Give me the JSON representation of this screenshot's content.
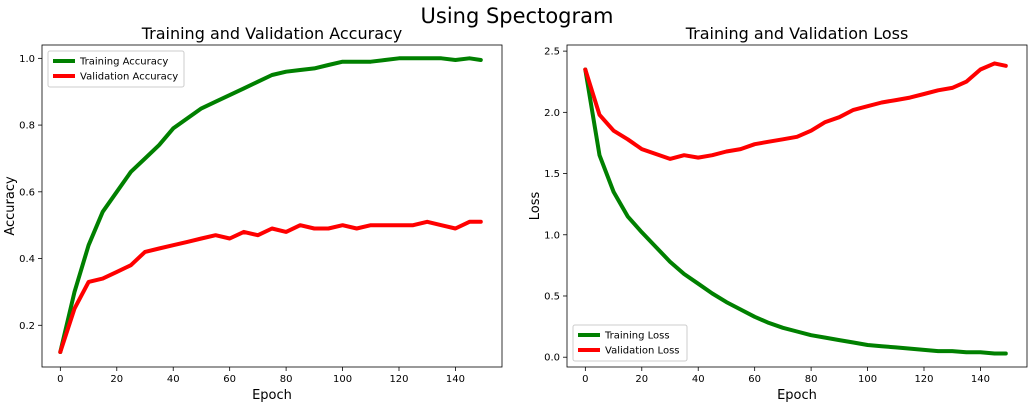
{
  "suptitle": "Using Spectogram",
  "chart_data": [
    {
      "type": "line",
      "title": "Training and Validation Accuracy",
      "xlabel": "Epoch",
      "ylabel": "Accuracy",
      "xlim": [
        -6.5,
        156.5
      ],
      "ylim": [
        0.075,
        1.04
      ],
      "xticks": [
        0,
        20,
        40,
        60,
        80,
        100,
        120,
        140
      ],
      "yticks": [
        0.2,
        0.4,
        0.6,
        0.8,
        1.0
      ],
      "ytick_labels": [
        "0.2",
        "0.4",
        "0.6",
        "0.8",
        "1.0"
      ],
      "grid": false,
      "legend": "top-left",
      "x": [
        0,
        5,
        10,
        15,
        20,
        25,
        30,
        35,
        40,
        45,
        50,
        55,
        60,
        65,
        70,
        75,
        80,
        85,
        90,
        95,
        100,
        105,
        110,
        115,
        120,
        125,
        130,
        135,
        140,
        145,
        149
      ],
      "series": [
        {
          "name": "Training Accuracy",
          "color": "#008000",
          "values": [
            0.12,
            0.3,
            0.44,
            0.54,
            0.6,
            0.66,
            0.7,
            0.74,
            0.79,
            0.82,
            0.85,
            0.87,
            0.89,
            0.91,
            0.93,
            0.95,
            0.96,
            0.965,
            0.97,
            0.98,
            0.99,
            0.99,
            0.99,
            0.995,
            1.0,
            1.0,
            1.0,
            1.0,
            0.995,
            1.0,
            0.995
          ]
        },
        {
          "name": "Validation Accuracy",
          "color": "#ff0000",
          "values": [
            0.12,
            0.25,
            0.33,
            0.34,
            0.36,
            0.38,
            0.42,
            0.43,
            0.44,
            0.45,
            0.46,
            0.47,
            0.46,
            0.48,
            0.47,
            0.49,
            0.48,
            0.5,
            0.49,
            0.49,
            0.5,
            0.49,
            0.5,
            0.5,
            0.5,
            0.5,
            0.51,
            0.5,
            0.49,
            0.51,
            0.51
          ]
        }
      ]
    },
    {
      "type": "line",
      "title": "Training and Validation Loss",
      "xlabel": "Epoch",
      "ylabel": "Loss",
      "xlim": [
        -6.5,
        156.5
      ],
      "ylim": [
        -0.08,
        2.55
      ],
      "xticks": [
        0,
        20,
        40,
        60,
        80,
        100,
        120,
        140
      ],
      "yticks": [
        0.0,
        0.5,
        1.0,
        1.5,
        2.0,
        2.5
      ],
      "ytick_labels": [
        "0.0",
        "0.5",
        "1.0",
        "1.5",
        "2.0",
        "2.5"
      ],
      "grid": false,
      "legend": "bottom-left",
      "x": [
        0,
        5,
        10,
        15,
        20,
        25,
        30,
        35,
        40,
        45,
        50,
        55,
        60,
        65,
        70,
        75,
        80,
        85,
        90,
        95,
        100,
        105,
        110,
        115,
        120,
        125,
        130,
        135,
        140,
        145,
        149
      ],
      "series": [
        {
          "name": "Training Loss",
          "color": "#008000",
          "values": [
            2.35,
            1.65,
            1.35,
            1.15,
            1.02,
            0.9,
            0.78,
            0.68,
            0.6,
            0.52,
            0.45,
            0.39,
            0.33,
            0.28,
            0.24,
            0.21,
            0.18,
            0.16,
            0.14,
            0.12,
            0.1,
            0.09,
            0.08,
            0.07,
            0.06,
            0.05,
            0.05,
            0.04,
            0.04,
            0.03,
            0.03
          ]
        },
        {
          "name": "Validation Loss",
          "color": "#ff0000",
          "values": [
            2.35,
            1.98,
            1.85,
            1.78,
            1.7,
            1.66,
            1.62,
            1.65,
            1.63,
            1.65,
            1.68,
            1.7,
            1.74,
            1.76,
            1.78,
            1.8,
            1.85,
            1.92,
            1.96,
            2.02,
            2.05,
            2.08,
            2.1,
            2.12,
            2.15,
            2.18,
            2.2,
            2.25,
            2.35,
            2.4,
            2.38
          ]
        }
      ]
    }
  ]
}
